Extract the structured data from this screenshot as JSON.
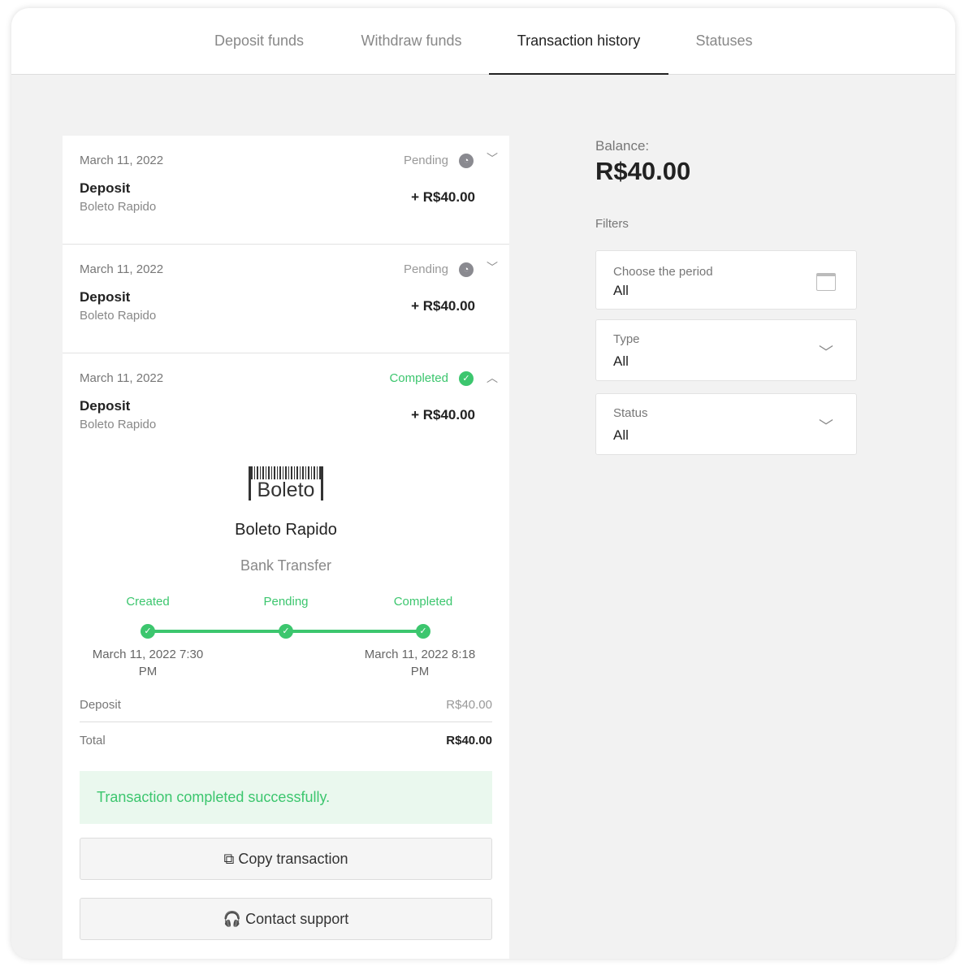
{
  "tabs": [
    "Deposit funds",
    "Withdraw funds",
    "Transaction history",
    "Statuses"
  ],
  "transactions": [
    {
      "date": "March 11, 2022",
      "status": "Pending",
      "type": "Deposit",
      "method": "Boleto Rapido",
      "amount": "+ R$40.00"
    },
    {
      "date": "March 11, 2022",
      "status": "Pending",
      "type": "Deposit",
      "method": "Boleto Rapido",
      "amount": "+ R$40.00"
    },
    {
      "date": "March 11, 2022",
      "status": "Completed",
      "type": "Deposit",
      "method": "Boleto Rapido",
      "amount": "+ R$40.00"
    }
  ],
  "detail": {
    "logo": "Boleto",
    "name": "Boleto Rapido",
    "subtitle": "Bank Transfer",
    "steps": [
      {
        "label": "Created",
        "time": "March 11, 2022 7:30 PM"
      },
      {
        "label": "Pending",
        "time": ""
      },
      {
        "label": "Completed",
        "time": "March 11, 2022 8:18 PM"
      }
    ],
    "deposit_label": "Deposit",
    "deposit_value": "R$40.00",
    "total_label": "Total",
    "total_value": "R$40.00",
    "success": "Transaction completed successfully.",
    "copy": "Copy transaction",
    "support": "Contact support"
  },
  "balance": {
    "label": "Balance:",
    "value": "R$40.00"
  },
  "filters": {
    "title": "Filters",
    "items": [
      {
        "label": "Choose the period",
        "value": "All",
        "icon": "calendar-icon"
      },
      {
        "label": "Type",
        "value": "All",
        "icon": "chevron-down-icon"
      },
      {
        "label": "Status",
        "value": "All",
        "icon": "chevron-down-icon"
      }
    ]
  },
  "colors": {
    "accent": "#3cc66e",
    "pending": "#8a8a90"
  }
}
